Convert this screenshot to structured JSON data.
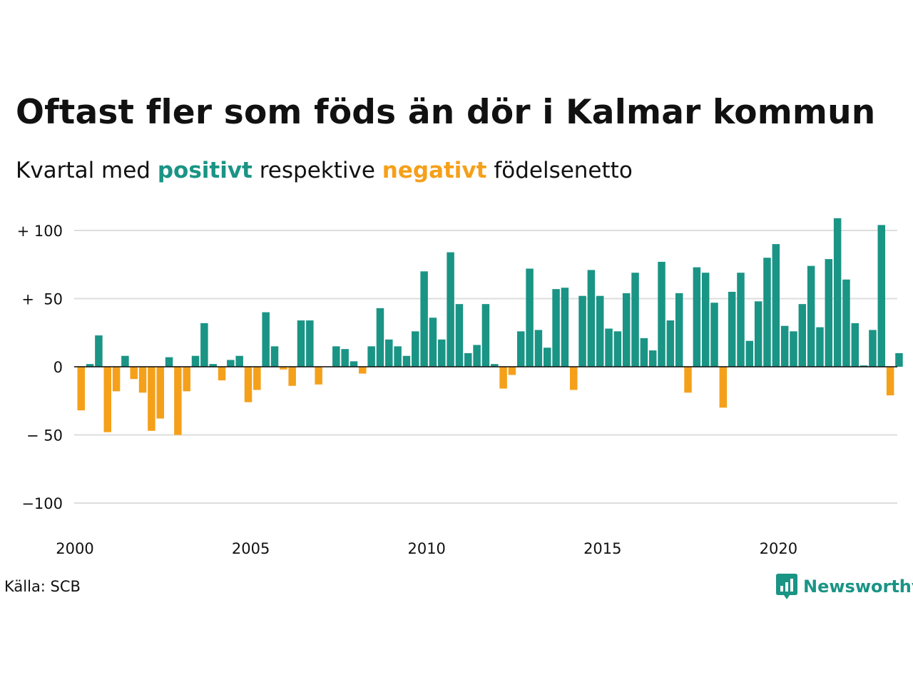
{
  "title": "Oftast fler som föds än dör i Kalmar kommun",
  "subtitle": {
    "prefix": "Kvartal med ",
    "positive_word": "positivt",
    "middle": " respektive ",
    "negative_word": "negativt",
    "suffix": " födelsenetto"
  },
  "source": "Källa: SCB",
  "brand": {
    "name": "Newsworthy",
    "icon": "newsworthy-chart-icon"
  },
  "colors": {
    "positive": "#1a9485",
    "negative": "#f5a01a",
    "grid": "#dddddd",
    "text": "#111111"
  },
  "chart_data": {
    "type": "bar",
    "x_start": "2000 Q1",
    "x_tick_labels": [
      "2000",
      "2005",
      "2010",
      "2015",
      "2020"
    ],
    "y_tick_labels": [
      "+ 100",
      "+  50",
      "0",
      "− 50",
      "−100"
    ],
    "y_ticks": [
      100,
      50,
      0,
      -50,
      -100
    ],
    "ylim": [
      -115,
      115
    ],
    "values": [
      -32,
      2,
      23,
      -48,
      -18,
      8,
      -9,
      -19,
      -47,
      -38,
      7,
      -50,
      -18,
      8,
      32,
      2,
      -10,
      5,
      8,
      -26,
      -17,
      40,
      15,
      -2,
      -14,
      34,
      34,
      -13,
      0,
      15,
      13,
      4,
      -5,
      15,
      43,
      20,
      15,
      8,
      26,
      70,
      36,
      20,
      84,
      46,
      10,
      16,
      46,
      2,
      -16,
      -6,
      26,
      72,
      27,
      14,
      57,
      58,
      -17,
      52,
      71,
      52,
      28,
      26,
      54,
      69,
      21,
      12,
      77,
      34,
      54,
      -19,
      73,
      69,
      47,
      -30,
      55,
      69,
      19,
      48,
      80,
      90,
      30,
      26,
      46,
      74,
      29,
      79,
      109,
      64,
      32,
      1,
      27,
      104,
      -21,
      10
    ]
  }
}
